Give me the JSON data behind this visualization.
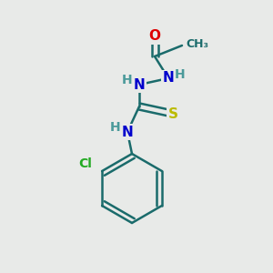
{
  "bg_color": "#e8eae8",
  "atom_colors": {
    "O": "#dd0000",
    "N": "#0000cc",
    "S": "#bbbb00",
    "Cl": "#22aa22",
    "C": "#1a6b6b",
    "H": "#4a9a9a"
  },
  "bond_color": "#1a6b6b",
  "bond_width": 1.8,
  "figsize": [
    3.0,
    3.0
  ],
  "dpi": 100
}
